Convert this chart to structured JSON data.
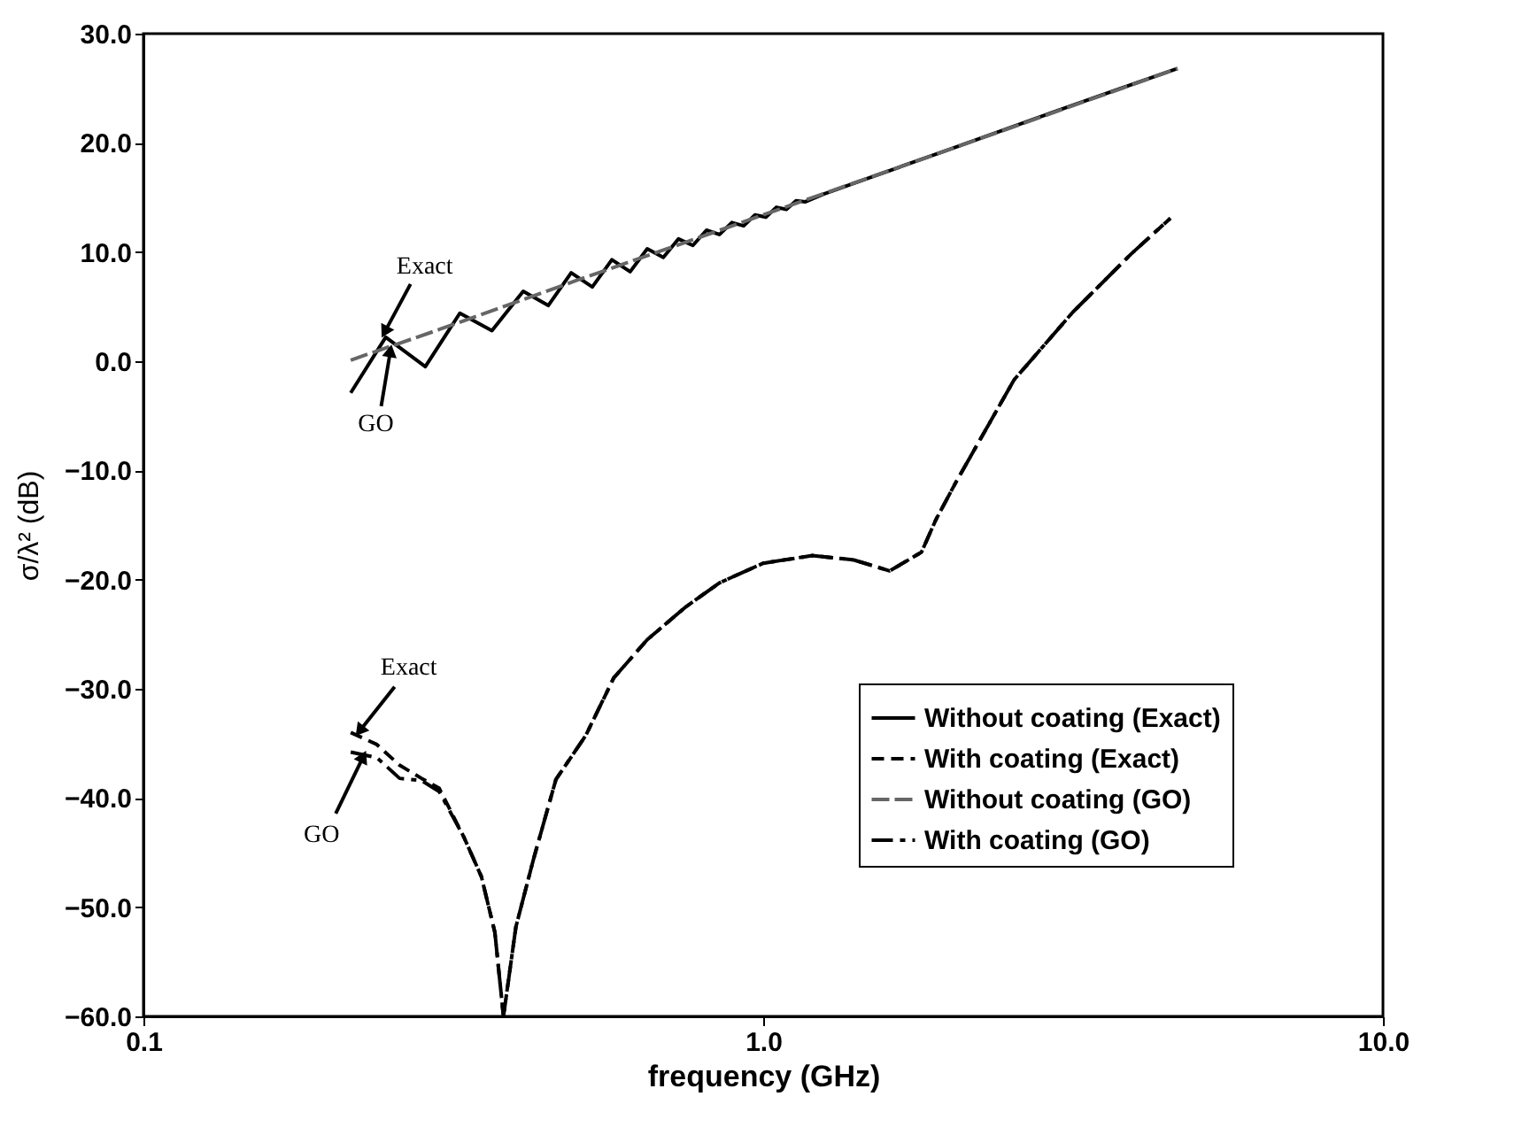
{
  "chart_data": {
    "type": "line",
    "xlabel": "frequency (GHz)",
    "ylabel": "σ/λ² (dB)",
    "log": "x",
    "grid": false,
    "legend": "bottom right",
    "xlim": [
      0.1,
      10
    ],
    "xticks": [
      {
        "value": 0.1,
        "label": "0.1"
      },
      {
        "value": 1,
        "label": "1.0"
      },
      {
        "value": 10,
        "label": "10.0"
      }
    ],
    "ylim": [
      -60,
      30
    ],
    "yticks": [
      {
        "value": -60,
        "label": "−60.0"
      },
      {
        "value": -50,
        "label": "−50.0"
      },
      {
        "value": -40,
        "label": "−40.0"
      },
      {
        "value": -30,
        "label": "−30.0"
      },
      {
        "value": -20,
        "label": "−20.0"
      },
      {
        "value": -10,
        "label": "−10.0"
      },
      {
        "value": 0,
        "label": "0.0"
      },
      {
        "value": 10,
        "label": "10.0"
      },
      {
        "value": 20,
        "label": "20.0"
      },
      {
        "value": 30,
        "label": "30.0"
      }
    ],
    "series": [
      {
        "name": "Without coating (Exact)",
        "color": "#000000",
        "line_style": "solid",
        "x": [
          0.216,
          0.246,
          0.285,
          0.324,
          0.365,
          0.41,
          0.45,
          0.49,
          0.53,
          0.57,
          0.61,
          0.65,
          0.69,
          0.73,
          0.77,
          0.81,
          0.85,
          0.89,
          0.93,
          0.97,
          1.01,
          1.05,
          1.09,
          1.13,
          1.17,
          1.25,
          1.5,
          2.0,
          3.0,
          4.66
        ],
        "values": [
          -2.9,
          2.2,
          -0.5,
          4.4,
          2.8,
          6.4,
          5.1,
          8.1,
          6.8,
          9.3,
          8.2,
          10.3,
          9.5,
          11.2,
          10.6,
          12.0,
          11.6,
          12.7,
          12.4,
          13.4,
          13.2,
          14.1,
          13.9,
          14.7,
          14.6,
          15.3,
          16.9,
          19.4,
          23.0,
          26.8
        ]
      },
      {
        "name": "With coating (Exact)",
        "color": "#000000",
        "line_style": "dashed",
        "x": [
          0.216,
          0.238,
          0.259,
          0.281,
          0.3,
          0.329,
          0.351,
          0.369,
          0.381,
          0.399,
          0.426,
          0.463,
          0.517,
          0.574,
          0.65,
          0.75,
          0.85,
          1.0,
          1.2,
          1.4,
          1.6,
          1.8,
          1.9,
          2.05,
          2.54,
          3.16,
          3.92,
          4.54
        ],
        "values": [
          -34.0,
          -35.1,
          -37.0,
          -38.2,
          -39.1,
          -43.6,
          -47.2,
          -52.3,
          -60.0,
          -51.8,
          -45.6,
          -38.3,
          -34.3,
          -29.0,
          -25.5,
          -22.5,
          -20.3,
          -18.5,
          -17.8,
          -18.2,
          -19.2,
          -17.5,
          -14.5,
          -11.0,
          -1.7,
          4.5,
          9.8,
          13.1
        ]
      },
      {
        "name": "Without coating (GO)",
        "color": "#666666",
        "line_style": "dashed",
        "x": [
          0.216,
          0.3,
          0.5,
          0.7,
          1.0,
          2.0,
          4.66
        ],
        "values": [
          0.1,
          2.9,
          7.4,
          10.3,
          13.4,
          19.4,
          26.8
        ]
      },
      {
        "name": "With coating (GO)",
        "color": "#000000",
        "line_style": "dashed",
        "x": [
          0.216,
          0.238,
          0.259,
          0.281,
          0.3,
          0.329,
          0.351,
          0.369,
          0.381,
          0.399,
          0.426,
          0.463,
          0.517,
          0.574,
          0.65,
          0.75,
          0.85,
          1.0,
          1.2,
          1.4,
          1.6,
          1.8,
          1.9,
          2.05,
          2.54,
          3.16,
          3.92,
          4.54
        ],
        "values": [
          -35.8,
          -36.3,
          -38.2,
          -38.4,
          -39.4,
          -43.6,
          -47.2,
          -52.3,
          -60.0,
          -51.8,
          -45.6,
          -38.3,
          -34.3,
          -29.0,
          -25.5,
          -22.5,
          -20.3,
          -18.5,
          -17.8,
          -18.2,
          -19.2,
          -17.5,
          -14.5,
          -11.0,
          -1.7,
          4.5,
          9.8,
          13.1
        ]
      }
    ],
    "annotations": [
      {
        "text": "Exact",
        "x": 0.246,
        "y": 2.2
      },
      {
        "text": "GO",
        "x": 0.25,
        "y": 1.4
      },
      {
        "text": "Exact",
        "x": 0.22,
        "y": -34.2
      },
      {
        "text": "GO",
        "x": 0.23,
        "y": -35.9
      }
    ]
  }
}
